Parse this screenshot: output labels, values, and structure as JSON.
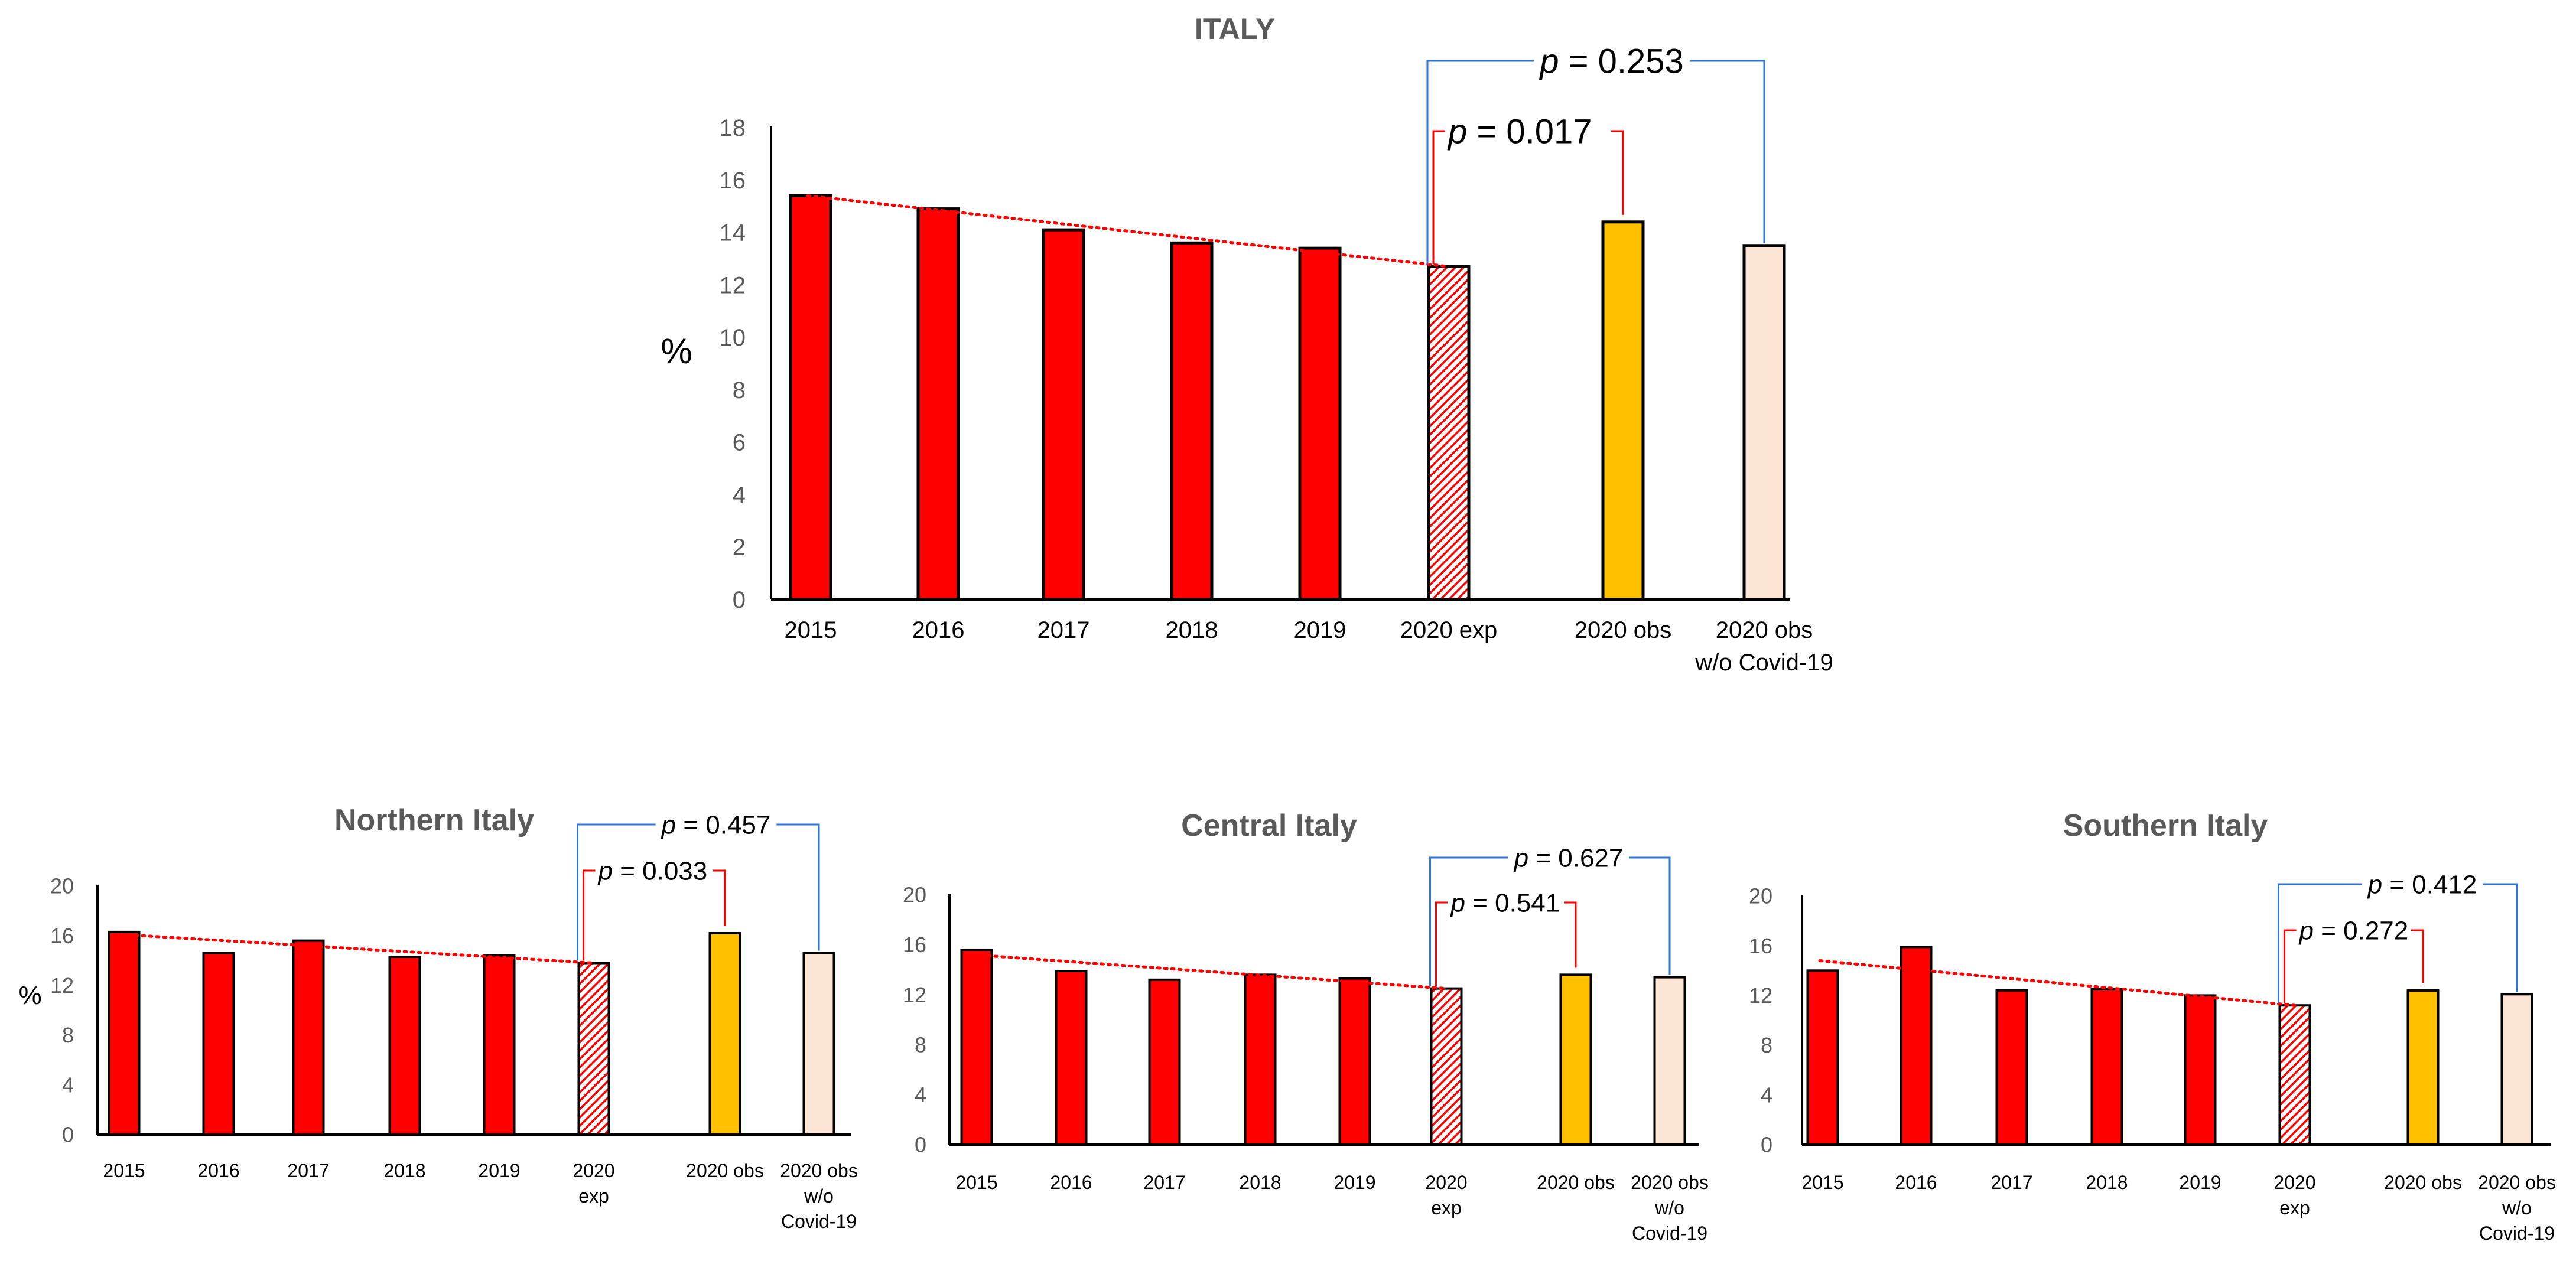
{
  "colors": {
    "observed": "#ff0000",
    "expected_hatch": "#ff0000",
    "obs_2020": "#ffc000",
    "obs_wo_covid": "#fde5d6",
    "trend": "#ff0000",
    "bracket_red": "#ff0000",
    "bracket_blue": "#2f75d6",
    "title": "#595959",
    "axis": "#000000"
  },
  "chart_data": [
    {
      "type": "bar",
      "title": "ITALY",
      "ylabel": "%",
      "ylim": [
        0,
        18
      ],
      "yticks": [
        "0",
        "2",
        "4",
        "6",
        "8",
        "10",
        "12",
        "14",
        "16",
        "18"
      ],
      "categories": [
        [
          "2015"
        ],
        [
          "2016"
        ],
        [
          "2017"
        ],
        [
          "2018"
        ],
        [
          "2019"
        ],
        [
          "2020 exp"
        ],
        [
          "2020 obs"
        ],
        [
          "2020 obs",
          "w/o Covid-19"
        ]
      ],
      "values": [
        15.4,
        14.9,
        14.1,
        13.6,
        13.4,
        12.7,
        14.4,
        13.5
      ],
      "trend": {
        "from": 15.4,
        "to": 12.7
      },
      "p_values": [
        {
          "label": "p",
          "text": " = 0.017",
          "from": "2020 exp",
          "to": "2020 obs",
          "color": "red"
        },
        {
          "label": "p",
          "text": " = 0.253",
          "from": "2020 exp",
          "to": "2020 obs w/o Covid-19",
          "color": "blue"
        }
      ]
    },
    {
      "type": "bar",
      "title": "Northern Italy",
      "ylabel": "%",
      "ylim": [
        0,
        20
      ],
      "yticks": [
        "0",
        "4",
        "8",
        "12",
        "16",
        "20"
      ],
      "categories": [
        [
          "2015"
        ],
        [
          "2016"
        ],
        [
          "2017"
        ],
        [
          "2018"
        ],
        [
          "2019"
        ],
        [
          "2020",
          "exp"
        ],
        [
          "2020 obs"
        ],
        [
          "2020 obs",
          "w/o",
          "Covid-19"
        ]
      ],
      "values": [
        16.3,
        14.6,
        15.6,
        14.3,
        14.4,
        13.8,
        16.2,
        14.6
      ],
      "trend": {
        "from": 16.1,
        "to": 13.8
      },
      "p_values": [
        {
          "label": "p",
          "text": " = 0.033",
          "from": "2020 exp",
          "to": "2020 obs",
          "color": "red"
        },
        {
          "label": "p",
          "text": " = 0.457",
          "from": "2020 exp",
          "to": "2020 obs w/o Covid-19",
          "color": "blue"
        }
      ]
    },
    {
      "type": "bar",
      "title": "Central Italy",
      "ylabel": "",
      "ylim": [
        0,
        20
      ],
      "yticks": [
        "0",
        "4",
        "8",
        "12",
        "16",
        "20"
      ],
      "categories": [
        [
          "2015"
        ],
        [
          "2016"
        ],
        [
          "2017"
        ],
        [
          "2018"
        ],
        [
          "2019"
        ],
        [
          "2020",
          "exp"
        ],
        [
          "2020 obs"
        ],
        [
          "2020 obs",
          "w/o",
          "Covid-19"
        ]
      ],
      "values": [
        15.6,
        13.9,
        13.2,
        13.6,
        13.3,
        12.5,
        13.6,
        13.4
      ],
      "trend": {
        "from": 15.2,
        "to": 12.5
      },
      "p_values": [
        {
          "label": "p",
          "text": " = 0.541",
          "from": "2020 exp",
          "to": "2020 obs",
          "color": "red"
        },
        {
          "label": "p",
          "text": " = 0.627",
          "from": "2020 exp",
          "to": "2020 obs w/o Covid-19",
          "color": "blue"
        }
      ]
    },
    {
      "type": "bar",
      "title": "Southern Italy",
      "ylabel": "",
      "ylim": [
        0,
        20
      ],
      "yticks": [
        "0",
        "4",
        "8",
        "12",
        "16",
        "20"
      ],
      "categories": [
        [
          "2015"
        ],
        [
          "2016"
        ],
        [
          "2017"
        ],
        [
          "2018"
        ],
        [
          "2019"
        ],
        [
          "2020",
          "exp"
        ],
        [
          "2020 obs"
        ],
        [
          "2020 obs",
          "w/o",
          "Covid-19"
        ]
      ],
      "values": [
        14.0,
        15.9,
        12.4,
        12.5,
        12.0,
        11.2,
        12.4,
        12.1
      ],
      "trend": {
        "from": 14.8,
        "to": 11.2
      },
      "p_values": [
        {
          "label": "p",
          "text": " = 0.272",
          "from": "2020 exp",
          "to": "2020 obs",
          "color": "red"
        },
        {
          "label": "p",
          "text": " = 0.412",
          "from": "2020 exp",
          "to": "2020 obs w/o Covid-19",
          "color": "blue"
        }
      ]
    }
  ]
}
